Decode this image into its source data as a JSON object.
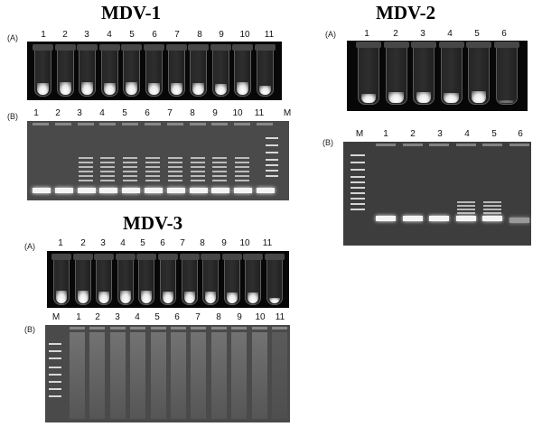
{
  "mdv1": {
    "title": "MDV-1",
    "panel_a": {
      "label": "(A)",
      "lanes": [
        "1",
        "2",
        "3",
        "4",
        "5",
        "6",
        "7",
        "8",
        "9",
        "10",
        "11"
      ]
    },
    "panel_b": {
      "label": "(B)",
      "lanes": [
        "1",
        "2",
        "3",
        "4",
        "5",
        "6",
        "7",
        "8",
        "9",
        "10",
        "11",
        "M"
      ]
    }
  },
  "mdv2": {
    "title": "MDV-2",
    "panel_a": {
      "label": "(A)",
      "lanes": [
        "1",
        "2",
        "3",
        "4",
        "5",
        "6"
      ]
    },
    "panel_b": {
      "label": "(B)",
      "lanes": [
        "M",
        "1",
        "2",
        "3",
        "4",
        "5",
        "6"
      ]
    }
  },
  "mdv3": {
    "title": "MDV-3",
    "panel_a": {
      "label": "(A)",
      "lanes": [
        "1",
        "2",
        "3",
        "4",
        "5",
        "6",
        "7",
        "8",
        "9",
        "10",
        "11"
      ]
    },
    "panel_b": {
      "label": "(B)",
      "lanes": [
        "M",
        "1",
        "2",
        "3",
        "4",
        "5",
        "6",
        "7",
        "8",
        "9",
        "10",
        "11"
      ]
    }
  },
  "colors": {
    "gel": "#3d3d3d",
    "tube_background": "#070707",
    "band": "#f4f4f4"
  }
}
